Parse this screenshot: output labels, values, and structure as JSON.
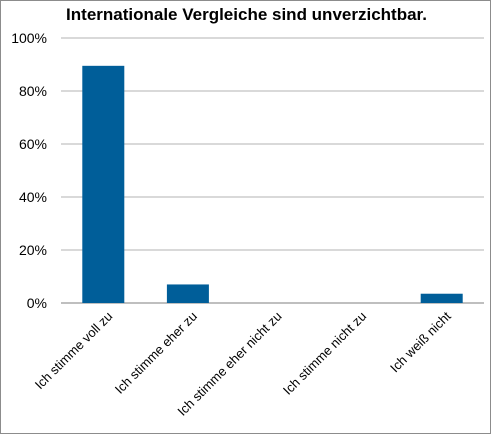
{
  "chart_data": {
    "type": "bar",
    "title": "Internationale Vergleiche sind unverzichtbar.",
    "categories": [
      "Ich stimme voll zu",
      "Ich stimme eher zu",
      "Ich stimme eher nicht zu",
      "Ich stimme nicht zu",
      "Ich weiß nicht"
    ],
    "values": [
      89.5,
      7,
      0,
      0,
      3.5
    ],
    "yticks": [
      "0%",
      "20%",
      "40%",
      "60%",
      "80%",
      "100%"
    ],
    "ylim": [
      0,
      100
    ],
    "bar_color": "#005e99",
    "grid": true
  }
}
